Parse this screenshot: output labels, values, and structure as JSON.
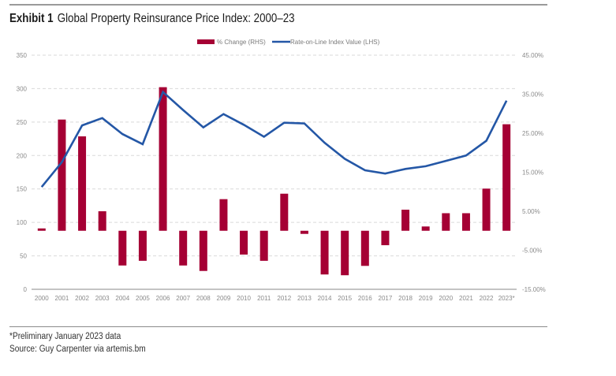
{
  "exhibit": {
    "label": "Exhibit 1",
    "title": "Global Property Reinsurance Price Index: 2000–23"
  },
  "footnotes": {
    "note": "*Preliminary January 2023 data",
    "source": "Source: Guy Carpenter via artemis.bm"
  },
  "colors": {
    "bar": "#a50034",
    "line": "#2457a6",
    "grid": "#d9d9d9",
    "axis": "#8a8a8a"
  },
  "chart_data": {
    "type": "bar+line",
    "title": "Global Property Reinsurance Price Index: 2000–23",
    "categories": [
      "2000",
      "2001",
      "2002",
      "2003",
      "2004",
      "2005",
      "2006",
      "2007",
      "2008",
      "2009",
      "2010",
      "2011",
      "2012",
      "2013",
      "2014",
      "2015",
      "2016",
      "2017",
      "2018",
      "2019",
      "2020",
      "2021",
      "2022",
      "2023*"
    ],
    "series": [
      {
        "name": "% Change (RHS)",
        "type": "bar",
        "axis": "right",
        "values": [
          0.6,
          28.5,
          24.2,
          5.0,
          -8.9,
          -7.7,
          36.8,
          -8.9,
          -10.3,
          8.1,
          -6.1,
          -7.7,
          9.5,
          -0.8,
          -11.2,
          -11.4,
          -9.0,
          -3.7,
          5.4,
          1.1,
          4.5,
          4.5,
          10.8,
          27.3
        ]
      },
      {
        "name": "Rate-on-Line Index Value (LHS)",
        "type": "line",
        "axis": "left",
        "values": [
          153,
          190,
          245,
          256,
          232,
          217,
          295,
          268,
          242,
          262,
          246,
          228,
          249,
          248,
          219,
          195,
          178,
          173,
          180,
          184,
          192,
          200,
          222,
          282
        ]
      }
    ],
    "left_axis": {
      "range": [
        0,
        350
      ],
      "ticks": [
        "0",
        "50",
        "100",
        "150",
        "200",
        "250",
        "300",
        "350"
      ]
    },
    "right_axis": {
      "range": [
        -15,
        45
      ],
      "ticks": [
        "-15.00%",
        "-5.00%",
        "5.00%",
        "15.00%",
        "25.00%",
        "35.00%",
        "45.00%"
      ]
    },
    "xlabel": "",
    "ylabel": "",
    "grid": true,
    "legend": {
      "position": "top-center",
      "entries": [
        "% Change (RHS)",
        "Rate-on-Line Index Value (LHS)"
      ]
    }
  }
}
